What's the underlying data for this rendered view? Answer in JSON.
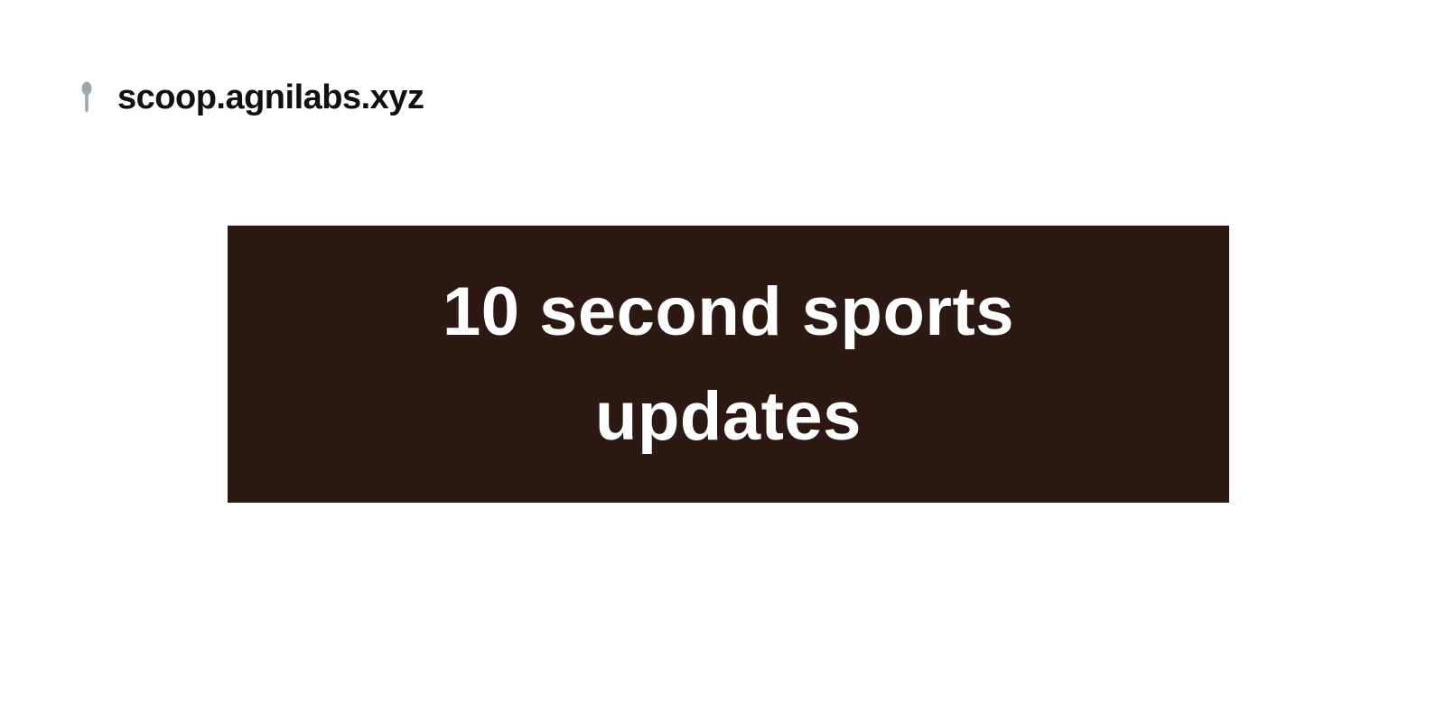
{
  "header": {
    "logo_icon": "spoon-icon",
    "site_name": "scoop.agnilabs.xyz"
  },
  "hero": {
    "title": "10 second sports updates"
  },
  "colors": {
    "banner_background": "#2d1913",
    "banner_text": "#ffffff",
    "logo_icon": "#9aa7b4",
    "site_name": "#111111",
    "page_background": "#ffffff"
  }
}
